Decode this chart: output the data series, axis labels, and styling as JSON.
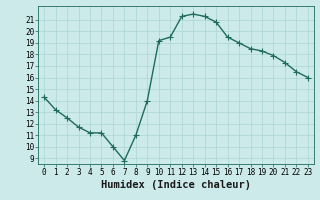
{
  "x": [
    0,
    1,
    2,
    3,
    4,
    5,
    6,
    7,
    8,
    9,
    10,
    11,
    12,
    13,
    14,
    15,
    16,
    17,
    18,
    19,
    20,
    21,
    22,
    23
  ],
  "y": [
    14.3,
    13.2,
    12.5,
    11.7,
    11.2,
    11.2,
    10.0,
    8.8,
    11.0,
    14.0,
    19.2,
    19.5,
    21.3,
    21.5,
    21.3,
    20.8,
    19.5,
    19.0,
    18.5,
    18.3,
    17.9,
    17.3,
    16.5,
    16.0
  ],
  "xlabel": "Humidex (Indice chaleur)",
  "xlim": [
    -0.5,
    23.5
  ],
  "ylim": [
    8.5,
    22.2
  ],
  "bg_color": "#cceaea",
  "line_color": "#1f6b5c",
  "grid_color": "#aad4d4",
  "marker": "+",
  "linewidth": 1.0,
  "markersize": 4,
  "yticks": [
    9,
    10,
    11,
    12,
    13,
    14,
    15,
    16,
    17,
    18,
    19,
    20,
    21
  ],
  "xticks": [
    0,
    1,
    2,
    3,
    4,
    5,
    6,
    7,
    8,
    9,
    10,
    11,
    12,
    13,
    14,
    15,
    16,
    17,
    18,
    19,
    20,
    21,
    22,
    23
  ],
  "tick_fontsize": 5.5,
  "xlabel_fontsize": 7.5
}
